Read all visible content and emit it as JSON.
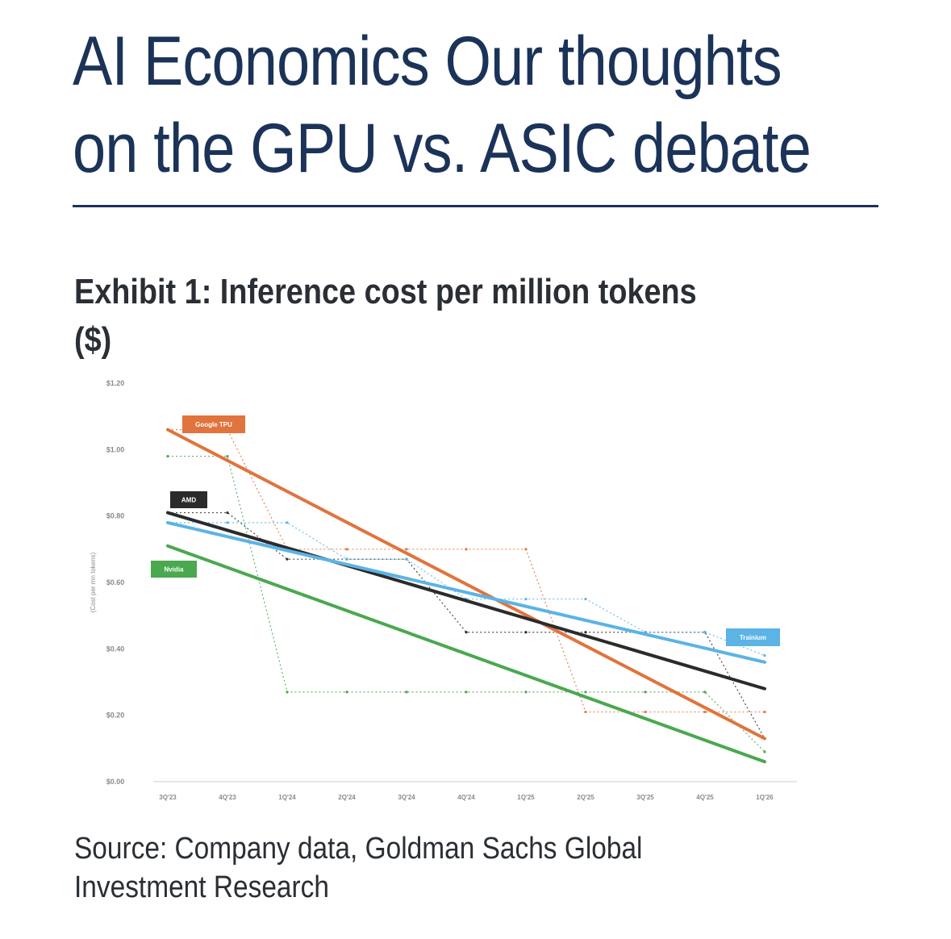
{
  "title_lines": [
    "AI Economics Our thoughts",
    "on the GPU vs. ASIC debate"
  ],
  "exhibit_lines": [
    "Exhibit 1: Inference cost per million tokens",
    "($)"
  ],
  "source_lines": [
    "Source: Company data, Goldman Sachs Global",
    "Investment Research"
  ],
  "chart_data": {
    "type": "line",
    "title": "Exhibit 1: Inference cost per million tokens ($)",
    "xlabel": "",
    "ylabel": "(Cost per mn tokens)",
    "categories": [
      "3Q'23",
      "4Q'23",
      "1Q'24",
      "2Q'24",
      "3Q'24",
      "4Q'24",
      "1Q'25",
      "2Q'25",
      "3Q'25",
      "4Q'25",
      "1Q'26"
    ],
    "yticks": [
      "$0.00",
      "$0.20",
      "$0.40",
      "$0.60",
      "$0.80",
      "$1.00",
      "$1.20"
    ],
    "ylim": [
      0,
      1.2
    ],
    "series": [
      {
        "name": "Google TPU",
        "color": "#e1733c",
        "trend": [
          1.06,
          0.13
        ],
        "actual": [
          1.06,
          1.06,
          0.7,
          0.7,
          0.7,
          0.7,
          0.7,
          0.21,
          0.21,
          0.21,
          0.21
        ]
      },
      {
        "name": "AMD",
        "color": "#2b2b2b",
        "trend": [
          0.81,
          0.28
        ],
        "actual": [
          0.81,
          0.81,
          0.67,
          0.67,
          0.67,
          0.45,
          0.45,
          0.45,
          0.45,
          0.45,
          0.13
        ]
      },
      {
        "name": "Trainium",
        "color": "#5bb3e6",
        "trend": [
          0.78,
          0.36
        ],
        "actual": [
          0.78,
          0.78,
          0.78,
          0.67,
          0.67,
          0.55,
          0.55,
          0.55,
          0.45,
          0.45,
          0.38
        ]
      },
      {
        "name": "Nvidia",
        "color": "#4aa84f",
        "trend": [
          0.71,
          0.06
        ],
        "actual": [
          0.98,
          0.98,
          0.27,
          0.27,
          0.27,
          0.27,
          0.27,
          0.27,
          0.27,
          0.27,
          0.09
        ]
      }
    ],
    "legend": [
      {
        "name": "Google TPU",
        "placement": "top-left"
      },
      {
        "name": "AMD",
        "placement": "left"
      },
      {
        "name": "Nvidia",
        "placement": "left"
      },
      {
        "name": "Trainium",
        "placement": "right"
      }
    ]
  }
}
